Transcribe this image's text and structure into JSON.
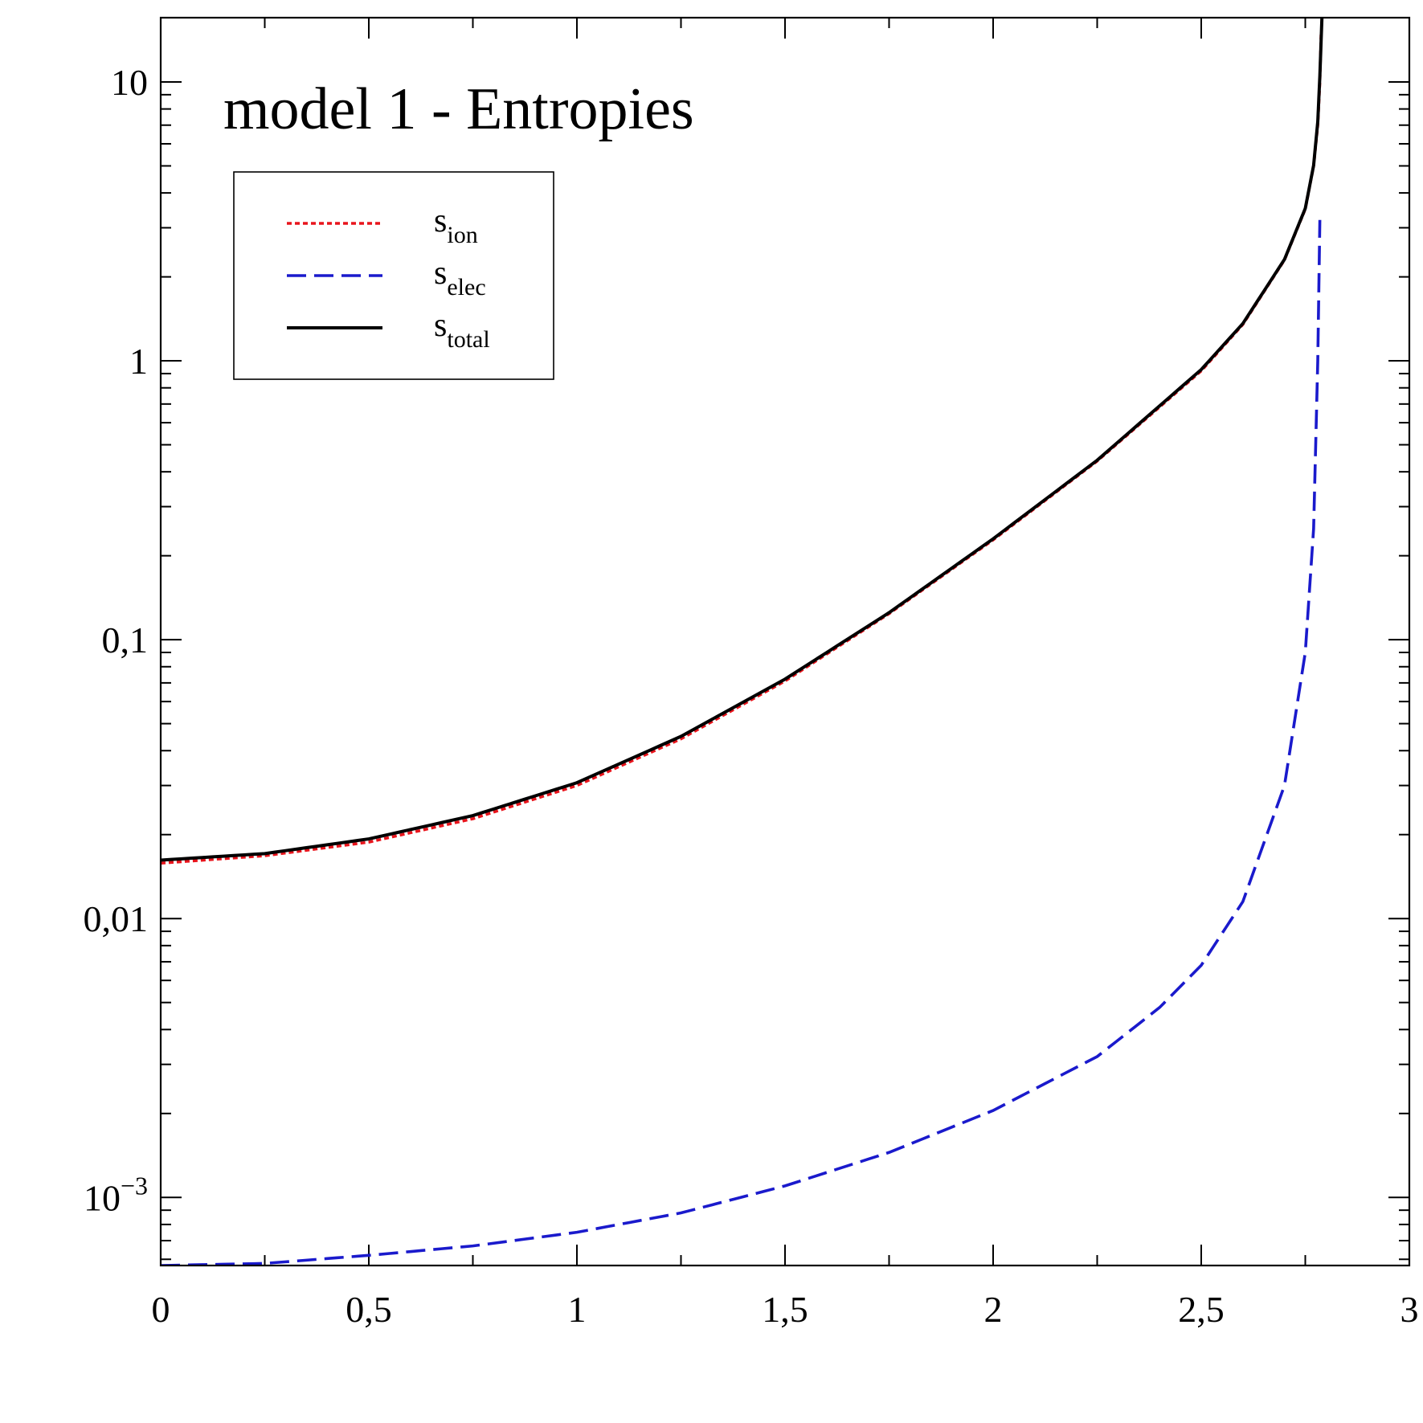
{
  "chart_data": {
    "type": "line",
    "title": "model 1 - Entropies",
    "xlabel": "",
    "ylabel": "",
    "xlim": [
      0,
      3
    ],
    "ylim": [
      0.00057,
      17
    ],
    "yscale": "log",
    "grid": false,
    "legend_position": "top-left",
    "x_ticks": [
      {
        "value": 0,
        "label": "0"
      },
      {
        "value": 0.5,
        "label": "0,5"
      },
      {
        "value": 1,
        "label": "1"
      },
      {
        "value": 1.5,
        "label": "1,5"
      },
      {
        "value": 2,
        "label": "2"
      },
      {
        "value": 2.5,
        "label": "2,5"
      },
      {
        "value": 3,
        "label": "3"
      }
    ],
    "y_ticks": [
      {
        "value": 0.001,
        "base": "10",
        "exp": "−3"
      },
      {
        "value": 0.01,
        "label": "0,01"
      },
      {
        "value": 0.1,
        "label": "0,1"
      },
      {
        "value": 1,
        "label": "1"
      },
      {
        "value": 10,
        "label": "10"
      }
    ],
    "series": [
      {
        "name": "s",
        "subscript": "ion",
        "color": "#e8141c",
        "style": "dotted",
        "points": [
          [
            0,
            0.0158
          ],
          [
            0.25,
            0.0168
          ],
          [
            0.5,
            0.0188
          ],
          [
            0.75,
            0.0228
          ],
          [
            1,
            0.03
          ],
          [
            1.25,
            0.0441
          ],
          [
            1.5,
            0.0711
          ],
          [
            1.75,
            0.124
          ],
          [
            2,
            0.228
          ],
          [
            2.25,
            0.437
          ],
          [
            2.5,
            0.92
          ],
          [
            2.6,
            1.35
          ],
          [
            2.7,
            2.3
          ],
          [
            2.75,
            3.5
          ],
          [
            2.77,
            5.0
          ],
          [
            2.78,
            7.0
          ],
          [
            2.785,
            10.0
          ],
          [
            2.788,
            15.0
          ]
        ]
      },
      {
        "name": "s",
        "subscript": "elec",
        "color": "#1a1acc",
        "style": "dashed",
        "points": [
          [
            0,
            0.00057
          ],
          [
            0.25,
            0.00058
          ],
          [
            0.5,
            0.00062
          ],
          [
            0.75,
            0.00067
          ],
          [
            1,
            0.00075
          ],
          [
            1.25,
            0.00088
          ],
          [
            1.5,
            0.0011
          ],
          [
            1.75,
            0.00145
          ],
          [
            2,
            0.00205
          ],
          [
            2.25,
            0.0032
          ],
          [
            2.4,
            0.0048
          ],
          [
            2.5,
            0.0068
          ],
          [
            2.6,
            0.0115
          ],
          [
            2.7,
            0.03
          ],
          [
            2.75,
            0.09
          ],
          [
            2.77,
            0.25
          ],
          [
            2.78,
            1.0
          ],
          [
            2.785,
            3.2
          ]
        ]
      },
      {
        "name": "s",
        "subscript": "total",
        "color": "#000000",
        "style": "solid",
        "points": [
          [
            0,
            0.0162
          ],
          [
            0.25,
            0.0171
          ],
          [
            0.5,
            0.0193
          ],
          [
            0.75,
            0.0234
          ],
          [
            1,
            0.0307
          ],
          [
            1.25,
            0.045
          ],
          [
            1.5,
            0.0722
          ],
          [
            1.75,
            0.125
          ],
          [
            2,
            0.23
          ],
          [
            2.25,
            0.44
          ],
          [
            2.5,
            0.93
          ],
          [
            2.6,
            1.36
          ],
          [
            2.7,
            2.31
          ],
          [
            2.75,
            3.52
          ],
          [
            2.77,
            5.02
          ],
          [
            2.78,
            7.2
          ],
          [
            2.785,
            10.5
          ],
          [
            2.79,
            17.0
          ]
        ]
      }
    ]
  }
}
